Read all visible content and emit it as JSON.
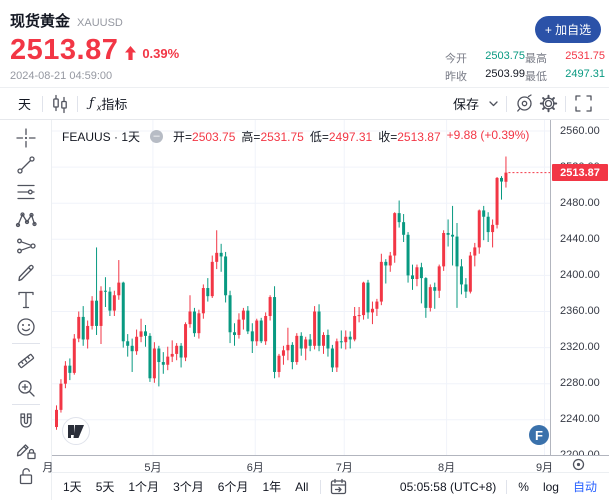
{
  "header": {
    "symbol_name": "现货黄金",
    "symbol_code": "XAUUSD",
    "price": "2513.87",
    "change_percent": "0.39%",
    "timestamp": "2024-08-21 04:59:00",
    "add_watchlist": "+ 加自选",
    "stats": [
      {
        "label": "今开",
        "value": "2503.75"
      },
      {
        "label": "昨收",
        "value": "2503.99"
      },
      {
        "label": "最高",
        "value": "2531.75"
      },
      {
        "label": "最低",
        "value": "2497.31"
      }
    ]
  },
  "toolbar": {
    "interval": "天",
    "indicators": "指标",
    "save": "保存"
  },
  "legend": {
    "title": "FEAUUS · 1天",
    "o_label": "开=",
    "o": "2503.75",
    "h_label": "高=",
    "h": "2531.75",
    "l_label": "低=",
    "l": "2497.31",
    "c_label": "收=",
    "c": "2513.87",
    "change": "+9.88 (+0.39%)"
  },
  "price_scale": {
    "last_price": "2513.87"
  },
  "bottom_bar": {
    "ranges": [
      "1天",
      "5天",
      "1个月",
      "3个月",
      "6个月",
      "1年",
      "All"
    ],
    "clock": "05:05:58 (UTC+8)",
    "percent": "%",
    "log": "log",
    "auto": "自动"
  },
  "watermarks": {
    "f_label": "F"
  },
  "chart_data": {
    "type": "candlestick",
    "title": "FEAUUS · 1天",
    "up_color": "#f23645",
    "down_color": "#089981",
    "grid": true,
    "y_range": [
      2200,
      2560
    ],
    "y_ticks": [
      2560,
      2520,
      2480,
      2440,
      2400,
      2360,
      2320,
      2280,
      2240,
      2200
    ],
    "months": [
      {
        "label": "月",
        "i": -1.6
      },
      {
        "label": "5月",
        "i": 22
      },
      {
        "label": "6月",
        "i": 45
      },
      {
        "label": "7月",
        "i": 65
      },
      {
        "label": "8月",
        "i": 88
      },
      {
        "label": "9月",
        "i": 110
      }
    ],
    "last_close": 2513.87,
    "candles": [
      [
        2232,
        2256,
        2229,
        2251
      ],
      [
        2251,
        2285,
        2248,
        2280
      ],
      [
        2280,
        2305,
        2275,
        2300
      ],
      [
        2300,
        2308,
        2284,
        2292
      ],
      [
        2292,
        2335,
        2290,
        2330
      ],
      [
        2330,
        2360,
        2326,
        2354
      ],
      [
        2354,
        2366,
        2322,
        2329
      ],
      [
        2329,
        2350,
        2319,
        2344
      ],
      [
        2344,
        2377,
        2340,
        2372
      ],
      [
        2372,
        2431,
        2334,
        2344
      ],
      [
        2344,
        2388,
        2324,
        2383
      ],
      [
        2383,
        2398,
        2365,
        2382
      ],
      [
        2382,
        2387,
        2355,
        2361
      ],
      [
        2361,
        2383,
        2355,
        2378
      ],
      [
        2378,
        2417,
        2373,
        2392
      ],
      [
        2392,
        2393,
        2320,
        2327
      ],
      [
        2327,
        2335,
        2310,
        2322
      ],
      [
        2322,
        2330,
        2293,
        2316
      ],
      [
        2316,
        2340,
        2312,
        2332
      ],
      [
        2332,
        2352,
        2326,
        2338
      ],
      [
        2338,
        2345,
        2321,
        2333
      ],
      [
        2333,
        2336,
        2282,
        2286
      ],
      [
        2286,
        2326,
        2281,
        2319
      ],
      [
        2319,
        2322,
        2277,
        2304
      ],
      [
        2304,
        2315,
        2291,
        2301
      ],
      [
        2301,
        2321,
        2295,
        2310
      ],
      [
        2310,
        2328,
        2304,
        2313
      ],
      [
        2313,
        2325,
        2306,
        2322
      ],
      [
        2322,
        2325,
        2298,
        2309
      ],
      [
        2309,
        2348,
        2305,
        2346
      ],
      [
        2346,
        2378,
        2342,
        2360
      ],
      [
        2360,
        2364,
        2332,
        2336
      ],
      [
        2336,
        2362,
        2330,
        2358
      ],
      [
        2358,
        2390,
        2352,
        2386
      ],
      [
        2386,
        2397,
        2371,
        2377
      ],
      [
        2377,
        2422,
        2375,
        2415
      ],
      [
        2415,
        2450,
        2407,
        2425
      ],
      [
        2425,
        2435,
        2404,
        2421
      ],
      [
        2421,
        2426,
        2370,
        2378
      ],
      [
        2378,
        2383,
        2325,
        2337
      ],
      [
        2337,
        2347,
        2322,
        2334
      ],
      [
        2334,
        2358,
        2330,
        2351
      ],
      [
        2351,
        2364,
        2340,
        2361
      ],
      [
        2361,
        2366,
        2335,
        2338
      ],
      [
        2338,
        2347,
        2314,
        2327
      ],
      [
        2327,
        2352,
        2322,
        2350
      ],
      [
        2350,
        2353,
        2325,
        2327
      ],
      [
        2327,
        2359,
        2323,
        2355
      ],
      [
        2355,
        2378,
        2350,
        2376
      ],
      [
        2376,
        2388,
        2286,
        2293
      ],
      [
        2293,
        2313,
        2287,
        2311
      ],
      [
        2311,
        2322,
        2301,
        2317
      ],
      [
        2317,
        2342,
        2306,
        2323
      ],
      [
        2323,
        2326,
        2296,
        2304
      ],
      [
        2304,
        2336,
        2301,
        2333
      ],
      [
        2333,
        2337,
        2311,
        2319
      ],
      [
        2319,
        2332,
        2306,
        2329
      ],
      [
        2329,
        2335,
        2316,
        2322
      ],
      [
        2322,
        2366,
        2318,
        2360
      ],
      [
        2360,
        2368,
        2316,
        2322
      ],
      [
        2322,
        2337,
        2313,
        2334
      ],
      [
        2334,
        2340,
        2310,
        2319
      ],
      [
        2319,
        2323,
        2293,
        2298
      ],
      [
        2298,
        2330,
        2293,
        2327
      ],
      [
        2327,
        2339,
        2319,
        2326
      ],
      [
        2326,
        2339,
        2318,
        2332
      ],
      [
        2332,
        2338,
        2319,
        2329
      ],
      [
        2329,
        2365,
        2327,
        2355
      ],
      [
        2355,
        2365,
        2348,
        2356
      ],
      [
        2356,
        2393,
        2351,
        2392
      ],
      [
        2392,
        2395,
        2352,
        2359
      ],
      [
        2359,
        2371,
        2346,
        2363
      ],
      [
        2363,
        2374,
        2355,
        2371
      ],
      [
        2371,
        2424,
        2367,
        2415
      ],
      [
        2415,
        2418,
        2391,
        2411
      ],
      [
        2411,
        2426,
        2404,
        2422
      ],
      [
        2422,
        2470,
        2414,
        2469
      ],
      [
        2469,
        2483,
        2453,
        2459
      ],
      [
        2459,
        2468,
        2437,
        2445
      ],
      [
        2445,
        2448,
        2392,
        2400
      ],
      [
        2400,
        2412,
        2384,
        2396
      ],
      [
        2396,
        2412,
        2388,
        2409
      ],
      [
        2409,
        2414,
        2369,
        2397
      ],
      [
        2397,
        2398,
        2353,
        2364
      ],
      [
        2364,
        2390,
        2360,
        2387
      ],
      [
        2387,
        2392,
        2363,
        2383
      ],
      [
        2383,
        2412,
        2375,
        2410
      ],
      [
        2410,
        2450,
        2405,
        2447
      ],
      [
        2447,
        2462,
        2432,
        2445
      ],
      [
        2445,
        2477,
        2411,
        2443
      ],
      [
        2443,
        2458,
        2364,
        2410
      ],
      [
        2410,
        2418,
        2379,
        2390
      ],
      [
        2390,
        2397,
        2375,
        2382
      ],
      [
        2382,
        2426,
        2380,
        2422
      ],
      [
        2422,
        2436,
        2410,
        2431
      ],
      [
        2431,
        2473,
        2424,
        2472
      ],
      [
        2472,
        2477,
        2439,
        2465
      ],
      [
        2465,
        2470,
        2437,
        2448
      ],
      [
        2448,
        2462,
        2431,
        2456
      ],
      [
        2456,
        2509,
        2452,
        2508
      ],
      [
        2508,
        2510,
        2484,
        2504
      ],
      [
        2503.75,
        2531.75,
        2497.31,
        2513.87
      ]
    ]
  }
}
